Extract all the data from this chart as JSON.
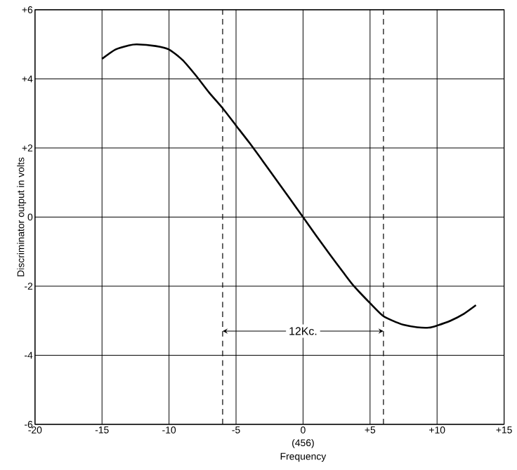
{
  "chart_data": {
    "type": "line",
    "xlabel": "Frequency",
    "ylabel": "Discriminator output in volts",
    "x": [
      -15,
      -14,
      -13,
      -12.4,
      -11,
      -10,
      -9,
      -8,
      -7,
      -6,
      -5,
      -4,
      -3,
      -2,
      -1,
      0,
      1,
      2,
      3,
      3.8,
      5,
      6,
      7,
      7.5,
      8.5,
      9.4,
      10,
      11,
      12,
      12.9
    ],
    "series": [
      {
        "color": "#000000",
        "values": [
          4.58,
          4.85,
          4.97,
          5.0,
          4.95,
          4.85,
          4.55,
          4.1,
          3.6,
          3.15,
          2.65,
          2.15,
          1.62,
          1.08,
          0.54,
          0,
          -0.55,
          -1.08,
          -1.6,
          -2.0,
          -2.49,
          -2.87,
          -3.05,
          -3.12,
          -3.19,
          -3.2,
          -3.14,
          -3.0,
          -2.8,
          -2.55
        ]
      }
    ],
    "xlim": [
      -20,
      15
    ],
    "ylim": [
      -6,
      6
    ],
    "xticks": [
      -20,
      -15,
      -10,
      -5,
      0,
      {
        "value": 5,
        "label": "+5"
      },
      {
        "value": 10,
        "label": "+10"
      },
      {
        "value": 15,
        "label": "+15"
      }
    ],
    "yticks": [
      -6,
      -4,
      -2,
      0,
      {
        "value": 2,
        "label": "+2"
      },
      {
        "value": 4,
        "label": "+4"
      },
      {
        "value": 6,
        "label": "+6"
      }
    ],
    "grid": true,
    "marker": "none",
    "line_style": "solid",
    "ref_lines": [
      {
        "axis": "x",
        "value": -6,
        "line_style": "dashed"
      },
      {
        "axis": "x",
        "value": 6,
        "line_style": "dashed"
      }
    ],
    "annotations": [
      {
        "text": "12Kc.",
        "x": 0,
        "y": -3.3
      },
      "(456)"
    ]
  }
}
